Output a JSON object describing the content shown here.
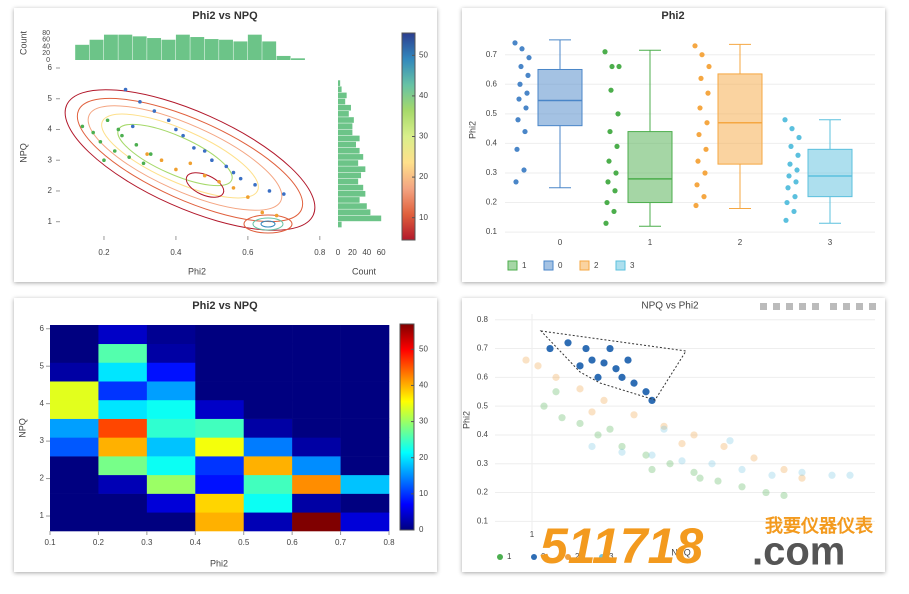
{
  "chart_data": [
    {
      "type": "histogram2dcontour",
      "title": "Phi2 vs NPQ",
      "x_label": "Phi2",
      "y_label": "NPQ",
      "xlim": [
        0.1,
        0.82
      ],
      "ylim": [
        0.6,
        6
      ],
      "xticks": [
        0.2,
        0.4,
        0.6,
        0.8
      ],
      "yticks": [
        1,
        2,
        3,
        4,
        5,
        6
      ],
      "series": [
        {
          "color": "#3a6fc4",
          "x": [
            0.26,
            0.3,
            0.34,
            0.38,
            0.42,
            0.45,
            0.5,
            0.54,
            0.58,
            0.62,
            0.66,
            0.7,
            0.28,
            0.4,
            0.48,
            0.56
          ],
          "y": [
            5.3,
            4.9,
            4.6,
            4.3,
            3.8,
            3.4,
            3.0,
            2.8,
            2.4,
            2.2,
            2.0,
            1.9,
            4.1,
            4.0,
            3.3,
            2.6
          ]
        },
        {
          "color": "#4caf50",
          "x": [
            0.14,
            0.17,
            0.19,
            0.21,
            0.23,
            0.25,
            0.27,
            0.29,
            0.31,
            0.33,
            0.2,
            0.24
          ],
          "y": [
            4.1,
            3.9,
            3.6,
            4.3,
            3.3,
            3.8,
            3.1,
            3.5,
            2.9,
            3.2,
            3.0,
            4.0
          ]
        },
        {
          "color": "#f0a030",
          "x": [
            0.32,
            0.36,
            0.4,
            0.44,
            0.48,
            0.52,
            0.56,
            0.6,
            0.64,
            0.68
          ],
          "y": [
            3.2,
            3.0,
            2.7,
            2.9,
            2.5,
            2.3,
            2.1,
            1.8,
            1.3,
            1.2
          ]
        }
      ],
      "top_histogram": {
        "y_label": "Count",
        "color": "#6cc488",
        "ylim": [
          0,
          90
        ],
        "yticks": [
          0,
          20,
          40,
          60,
          80
        ],
        "bins": [
          0.12,
          0.16,
          0.2,
          0.24,
          0.28,
          0.32,
          0.36,
          0.4,
          0.44,
          0.48,
          0.52,
          0.56,
          0.6,
          0.64,
          0.68,
          0.72,
          0.76
        ],
        "values": [
          45,
          60,
          75,
          75,
          70,
          65,
          60,
          75,
          68,
          62,
          60,
          55,
          75,
          55,
          12,
          5
        ]
      },
      "right_histogram": {
        "x_label": "Count",
        "color": "#6cc488",
        "xlim": [
          0,
          75
        ],
        "xticks": [
          0,
          20,
          40,
          60
        ],
        "bins": [
          0.8,
          1.0,
          1.2,
          1.4,
          1.6,
          1.8,
          2.0,
          2.2,
          2.4,
          2.6,
          2.8,
          3.0,
          3.2,
          3.4,
          3.6,
          3.8,
          4.0,
          4.2,
          4.4,
          4.6,
          4.8,
          5.0,
          5.2,
          5.4,
          5.6
        ],
        "values": [
          5,
          60,
          45,
          40,
          30,
          38,
          35,
          28,
          32,
          38,
          28,
          35,
          30,
          25,
          30,
          20,
          20,
          22,
          15,
          18,
          10,
          12,
          5,
          3
        ]
      },
      "colorbar": {
        "lim": [
          4.5,
          55.5
        ],
        "ticks": [
          10,
          20,
          30,
          40,
          50
        ],
        "colors": [
          "#b2182b",
          "#e0603d",
          "#f4a582",
          "#fee08b",
          "#d9ef8b",
          "#a6d96a",
          "#66c2a5",
          "#3288bd",
          "#2c3e8f"
        ]
      }
    },
    {
      "type": "box",
      "title": "Phi2",
      "y_label": "Phi2",
      "categories": [
        "0",
        "1",
        "2",
        "3"
      ],
      "ylim": [
        0.07,
        0.77
      ],
      "yticks": [
        0.1,
        0.2,
        0.3,
        0.4,
        0.5,
        0.6,
        0.7
      ],
      "series": [
        {
          "name": "1",
          "color": "#4cae4c",
          "whislo": 0.12,
          "q1": 0.2,
          "med": 0.28,
          "q3": 0.44,
          "whishi": 0.715,
          "points": [
            0.71,
            0.66,
            0.66,
            0.58,
            0.5,
            0.44,
            0.39,
            0.34,
            0.3,
            0.27,
            0.24,
            0.2,
            0.17,
            0.13
          ]
        },
        {
          "name": "0",
          "color": "#4a86c8",
          "whislo": 0.25,
          "q1": 0.46,
          "med": 0.545,
          "q3": 0.65,
          "whishi": 0.75,
          "points": [
            0.74,
            0.72,
            0.69,
            0.66,
            0.63,
            0.6,
            0.57,
            0.55,
            0.52,
            0.48,
            0.44,
            0.38,
            0.31,
            0.27
          ]
        },
        {
          "name": "2",
          "color": "#f5a742",
          "whislo": 0.18,
          "q1": 0.33,
          "med": 0.47,
          "q3": 0.635,
          "whishi": 0.735,
          "points": [
            0.73,
            0.7,
            0.66,
            0.62,
            0.57,
            0.52,
            0.47,
            0.43,
            0.38,
            0.34,
            0.3,
            0.26,
            0.22,
            0.19
          ]
        },
        {
          "name": "3",
          "color": "#5bc0de",
          "whislo": 0.13,
          "q1": 0.22,
          "med": 0.29,
          "q3": 0.38,
          "whishi": 0.48,
          "points": [
            0.48,
            0.45,
            0.42,
            0.39,
            0.36,
            0.33,
            0.31,
            0.29,
            0.27,
            0.25,
            0.22,
            0.2,
            0.17,
            0.14
          ]
        }
      ]
    },
    {
      "type": "heatmap",
      "title": "Phi2 vs NPQ",
      "x_label": "Phi2",
      "y_label": "NPQ",
      "xlim": [
        0.1,
        0.8
      ],
      "ylim": [
        0.6,
        6.1
      ],
      "xticks": [
        0.1,
        0.2,
        0.3,
        0.4,
        0.5,
        0.6,
        0.7,
        0.8
      ],
      "yticks": [
        1,
        2,
        3,
        4,
        5,
        6
      ],
      "x_bins": [
        0.1,
        0.2,
        0.3,
        0.4,
        0.5,
        0.6,
        0.7,
        0.8
      ],
      "y_bins": [
        0.6,
        1.1,
        1.6,
        2.1,
        2.6,
        3.1,
        3.6,
        4.1,
        4.6,
        5.1,
        5.6,
        6.1
      ],
      "z": [
        [
          0,
          0,
          0,
          40,
          3,
          57,
          5
        ],
        [
          0,
          0,
          5,
          38,
          22,
          2,
          0
        ],
        [
          0,
          3,
          30,
          8,
          25,
          42,
          18
        ],
        [
          0,
          28,
          22,
          10,
          40,
          15,
          0
        ],
        [
          12,
          40,
          18,
          35,
          14,
          2,
          0
        ],
        [
          16,
          46,
          24,
          25,
          2,
          0,
          0
        ],
        [
          34,
          20,
          22,
          4,
          0,
          0,
          0
        ],
        [
          34,
          10,
          16,
          0,
          0,
          0,
          0
        ],
        [
          2,
          20,
          8,
          0,
          0,
          0,
          0
        ],
        [
          0,
          26,
          2,
          0,
          0,
          0,
          0
        ],
        [
          0,
          4,
          1,
          0,
          0,
          0,
          0
        ]
      ],
      "colorbar": {
        "lim": [
          0,
          57
        ],
        "ticks": [
          0,
          10,
          20,
          30,
          40,
          50
        ],
        "colors": [
          "#000080",
          "#0000ff",
          "#0080ff",
          "#00ffff",
          "#80ff80",
          "#ffff00",
          "#ff8000",
          "#ff0000",
          "#800000"
        ]
      }
    },
    {
      "type": "scatter",
      "title": "NPQ vs Phi2",
      "x_label": "NPQ",
      "y_label": "Phi2",
      "xlim": [
        0.7,
        6.6
      ],
      "ylim": [
        0.07,
        0.82
      ],
      "xticks": [
        1
      ],
      "yticks": [
        0.1,
        0.2,
        0.3,
        0.4,
        0.5,
        0.6,
        0.7,
        0.8
      ],
      "series": [
        {
          "name": "1",
          "color": "#4caf50",
          "opacity": 0.3,
          "x": [
            1.2,
            1.5,
            1.8,
            2.1,
            2.5,
            2.9,
            3.3,
            3.7,
            4.1,
            4.5,
            4.9,
            5.2,
            1.4,
            2.3,
            3.0,
            3.8
          ],
          "y": [
            0.5,
            0.46,
            0.44,
            0.4,
            0.36,
            0.33,
            0.3,
            0.27,
            0.24,
            0.22,
            0.2,
            0.19,
            0.55,
            0.42,
            0.28,
            0.25
          ]
        },
        {
          "name": "0",
          "color": "#2e6db4",
          "opacity": 1,
          "x": [
            1.3,
            1.6,
            1.9,
            2.0,
            2.2,
            2.4,
            2.5,
            2.7,
            2.9,
            3.0,
            2.3,
            2.6,
            1.8,
            2.1
          ],
          "y": [
            0.7,
            0.72,
            0.7,
            0.66,
            0.65,
            0.63,
            0.6,
            0.58,
            0.55,
            0.52,
            0.7,
            0.66,
            0.64,
            0.6
          ]
        },
        {
          "name": "2",
          "color": "#f0a040",
          "opacity": 0.3,
          "x": [
            0.9,
            1.1,
            1.4,
            1.8,
            2.2,
            2.7,
            3.2,
            3.7,
            4.2,
            4.7,
            5.2,
            5.5,
            2.0,
            3.5
          ],
          "y": [
            0.66,
            0.64,
            0.6,
            0.56,
            0.52,
            0.47,
            0.43,
            0.4,
            0.36,
            0.32,
            0.28,
            0.25,
            0.48,
            0.37
          ]
        },
        {
          "name": "3",
          "color": "#6fc3e0",
          "opacity": 0.3,
          "x": [
            2.0,
            2.5,
            3.0,
            3.5,
            4.0,
            4.5,
            5.0,
            5.5,
            6.0,
            6.3,
            3.2,
            4.3
          ],
          "y": [
            0.36,
            0.34,
            0.33,
            0.31,
            0.3,
            0.28,
            0.26,
            0.27,
            0.26,
            0.26,
            0.42,
            0.38
          ]
        }
      ]
    }
  ],
  "watermark": {
    "number": "511718",
    "domain": ".com",
    "tagline": "我要仪器仪表"
  }
}
